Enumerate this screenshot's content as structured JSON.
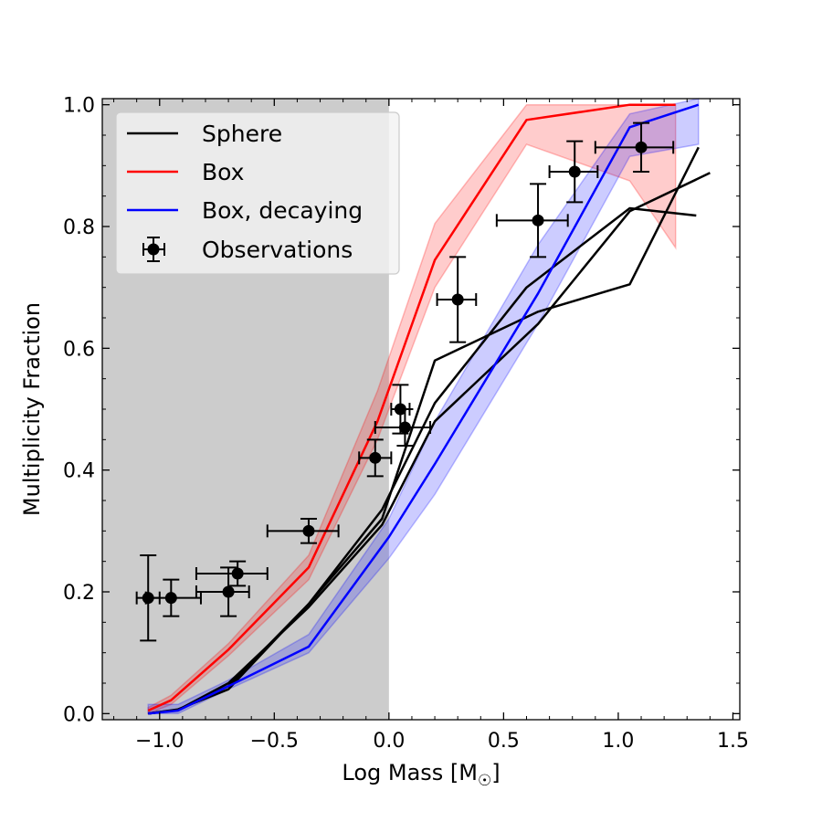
{
  "chart_data": {
    "type": "line",
    "xlabel": "Log Mass [M",
    "xlabel_sub": "☉",
    "xlabel_close": "]",
    "ylabel": "Multiplicity Fraction",
    "xlim": [
      -1.25,
      1.53
    ],
    "ylim": [
      -0.01,
      1.01
    ],
    "xticks": [
      -1.0,
      -0.5,
      0.0,
      0.5,
      1.0,
      1.5
    ],
    "xtick_labels": [
      "−1.0",
      "−0.5",
      "0.0",
      "0.5",
      "1.0",
      "1.5"
    ],
    "yticks": [
      0.0,
      0.2,
      0.4,
      0.6,
      0.8,
      1.0
    ],
    "ytick_labels": [
      "0.0",
      "0.2",
      "0.4",
      "0.6",
      "0.8",
      "1.0"
    ],
    "shaded_region": {
      "x0": -1.25,
      "x1": 0.0,
      "color": "#cccccc"
    },
    "colors": {
      "sphere": "#000000",
      "box": "#ff0000",
      "box_decaying": "#0000ff",
      "observations": "#000000"
    },
    "legend": {
      "position": "top-left",
      "entries": [
        {
          "key": "sphere",
          "label": "Sphere",
          "kind": "line",
          "color": "#000000"
        },
        {
          "key": "box",
          "label": "Box",
          "kind": "line",
          "color": "#ff0000"
        },
        {
          "key": "box_decaying",
          "label": "Box, decaying",
          "kind": "line",
          "color": "#0000ff"
        },
        {
          "key": "observations",
          "label": "Observations",
          "kind": "errorbar",
          "color": "#000000"
        }
      ]
    },
    "sphere_runs": [
      {
        "x": [
          -1.05,
          -0.92,
          -0.7,
          -0.35,
          -0.03,
          0.2,
          0.65,
          1.05,
          1.35
        ],
        "y": [
          0.0,
          0.006,
          0.045,
          0.18,
          0.32,
          0.58,
          0.66,
          0.705,
          0.93
        ]
      },
      {
        "x": [
          -1.05,
          -0.92,
          -0.7,
          -0.35,
          -0.03,
          0.2,
          0.65,
          1.05,
          1.4
        ],
        "y": [
          0.0,
          0.006,
          0.05,
          0.175,
          0.31,
          0.48,
          0.64,
          0.825,
          0.888
        ]
      },
      {
        "x": [
          -1.05,
          -0.92,
          -0.7,
          -0.35,
          -0.03,
          0.2,
          0.6,
          1.05,
          1.34
        ],
        "y": [
          0.0,
          0.007,
          0.04,
          0.18,
          0.335,
          0.51,
          0.7,
          0.83,
          0.818
        ]
      }
    ],
    "series": [
      {
        "name": "Box",
        "x": [
          -1.05,
          -0.95,
          -0.7,
          -0.35,
          -0.05,
          0.2,
          0.6,
          1.05,
          1.25
        ],
        "y": [
          0.005,
          0.022,
          0.105,
          0.24,
          0.48,
          0.745,
          0.975,
          1.0,
          1.0
        ],
        "lower": [
          0.0,
          0.015,
          0.095,
          0.22,
          0.45,
          0.7,
          0.935,
          0.875,
          0.765
        ],
        "upper": [
          0.01,
          0.03,
          0.115,
          0.26,
          0.53,
          0.805,
          1.0,
          1.0,
          1.0
        ]
      },
      {
        "name": "Box, decaying",
        "x": [
          -1.05,
          -0.92,
          -0.7,
          -0.35,
          0.0,
          0.2,
          0.65,
          1.05,
          1.35
        ],
        "y": [
          0.0,
          0.005,
          0.045,
          0.11,
          0.29,
          0.41,
          0.69,
          0.963,
          1.0
        ],
        "lower": [
          0.0,
          0.0,
          0.04,
          0.1,
          0.255,
          0.36,
          0.64,
          0.915,
          0.935
        ],
        "upper": [
          0.015,
          0.015,
          0.055,
          0.13,
          0.32,
          0.48,
          0.77,
          0.985,
          1.01
        ]
      }
    ],
    "observations": [
      {
        "x": -1.05,
        "y": 0.19,
        "xerr": [
          0.05,
          0.05
        ],
        "yerr": [
          0.07,
          0.07
        ]
      },
      {
        "x": -0.95,
        "y": 0.19,
        "xerr": [
          0.11,
          0.13
        ],
        "yerr": [
          0.03,
          0.03
        ]
      },
      {
        "x": -0.7,
        "y": 0.2,
        "xerr": [
          0.14,
          0.09
        ],
        "yerr": [
          0.04,
          0.04
        ]
      },
      {
        "x": -0.66,
        "y": 0.23,
        "xerr": [
          0.18,
          0.13
        ],
        "yerr": [
          0.02,
          0.02
        ]
      },
      {
        "x": -0.35,
        "y": 0.3,
        "xerr": [
          0.18,
          0.13
        ],
        "yerr": [
          0.02,
          0.02
        ]
      },
      {
        "x": -0.06,
        "y": 0.42,
        "xerr": [
          0.07,
          0.07
        ],
        "yerr": [
          0.03,
          0.03
        ]
      },
      {
        "x": 0.05,
        "y": 0.5,
        "xerr": [
          0.04,
          0.04
        ],
        "yerr": [
          0.04,
          0.04
        ]
      },
      {
        "x": 0.07,
        "y": 0.47,
        "xerr": [
          0.13,
          0.11
        ],
        "yerr": [
          0.03,
          0.03
        ]
      },
      {
        "x": 0.3,
        "y": 0.68,
        "xerr": [
          0.09,
          0.08
        ],
        "yerr": [
          0.07,
          0.07
        ]
      },
      {
        "x": 0.65,
        "y": 0.81,
        "xerr": [
          0.18,
          0.13
        ],
        "yerr": [
          0.06,
          0.06
        ]
      },
      {
        "x": 0.81,
        "y": 0.89,
        "xerr": [
          0.11,
          0.1
        ],
        "yerr": [
          0.05,
          0.05
        ]
      },
      {
        "x": 1.1,
        "y": 0.93,
        "xerr": [
          0.2,
          0.14
        ],
        "yerr": [
          0.04,
          0.04
        ]
      }
    ]
  }
}
